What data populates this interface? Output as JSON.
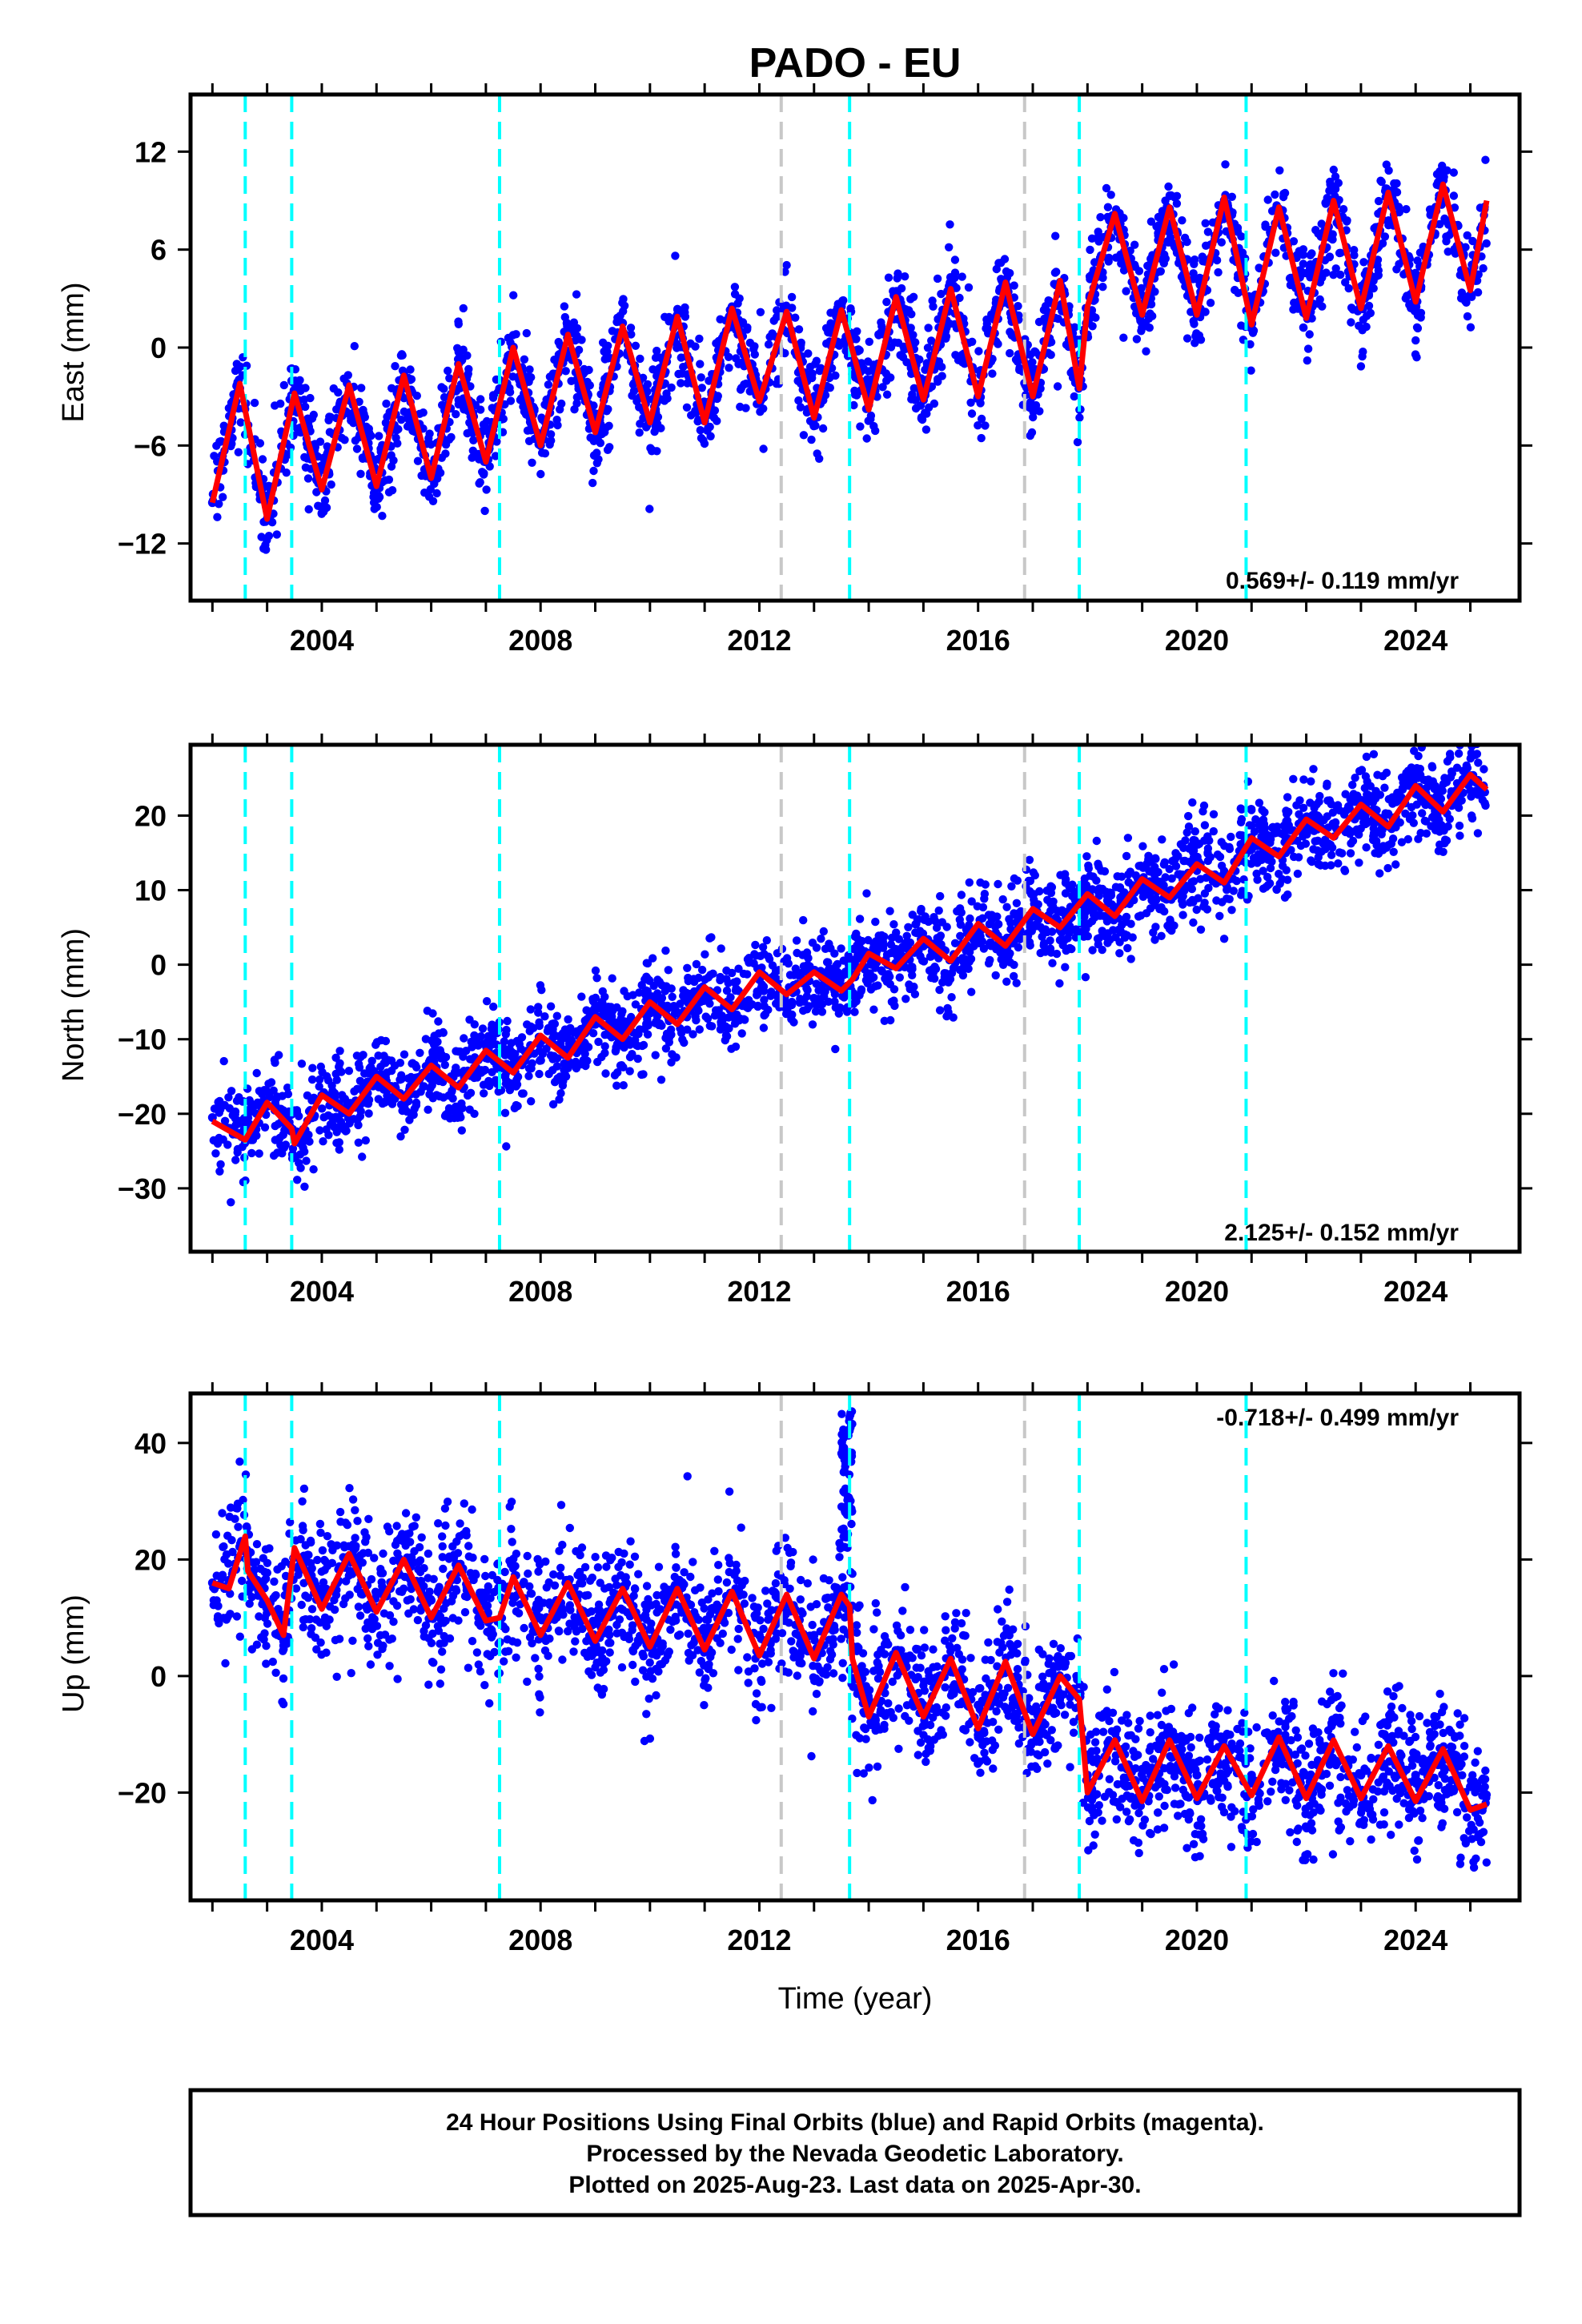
{
  "title": "PADO - EU",
  "colors": {
    "data": "#0000ff",
    "fit": "#ff0000",
    "equipment_change": "#00ffff",
    "earthquake": "#c8c8c8",
    "frame": "#000000"
  },
  "xlabel": "Time (year)",
  "footer": {
    "line1": "24 Hour Positions Using Final Orbits (blue) and Rapid Orbits (magenta).",
    "line2": "Processed by the Nevada Geodetic Laboratory.",
    "line3": "Plotted on 2025-Aug-23. Last data on 2025-Apr-30."
  },
  "chart_data": [
    {
      "type": "scatter",
      "title": "PADO - EU",
      "ylabel": "East (mm)",
      "xlabel": "",
      "xlim": [
        2001.6,
        2025.9
      ],
      "ylim": [
        -15.5,
        15.5
      ],
      "xticks": [
        2004,
        2008,
        2012,
        2016,
        2020,
        2024
      ],
      "yticks": [
        -12,
        -6,
        0,
        6,
        12
      ],
      "yticklabels": [
        "−12",
        "−6",
        "0",
        "6",
        "12"
      ],
      "rate_label": "0.569+/- 0.119 mm/yr",
      "grid": false,
      "vlines_cyan": [
        2002.6,
        2003.45,
        2007.25,
        2013.65,
        2017.85,
        2020.9
      ],
      "vlines_gray": [
        2012.4,
        2016.85
      ],
      "series": [
        {
          "kind": "points",
          "x": [
            2002.0,
            2002.5,
            2003.0,
            2003.5,
            2004.0,
            2004.5,
            2005.0,
            2005.5,
            2006.0,
            2006.5,
            2007.0,
            2007.5,
            2008.0,
            2008.5,
            2009.0,
            2009.5,
            2010.0,
            2010.5,
            2011.0,
            2011.5,
            2012.0,
            2012.5,
            2013.0,
            2013.5,
            2014.0,
            2014.5,
            2015.0,
            2015.5,
            2016.0,
            2016.5,
            2017.0,
            2017.5,
            2018.0,
            2018.5,
            2019.0,
            2019.5,
            2020.0,
            2020.5,
            2021.0,
            2021.5,
            2022.0,
            2022.5,
            2023.0,
            2023.5,
            2024.0,
            2024.5,
            2025.0
          ],
          "y": [
            -9.5,
            -2.5,
            -10.5,
            -3.0,
            -8.5,
            -2.5,
            -8.5,
            -2.0,
            -8.0,
            -1.0,
            -7.0,
            0.0,
            -6.0,
            1.0,
            -5.0,
            1.5,
            -4.5,
            2.0,
            -4.5,
            2.5,
            -3.0,
            2.0,
            -4.0,
            2.5,
            -3.5,
            3.0,
            -3.0,
            3.5,
            -3.0,
            4.0,
            -3.0,
            4.0,
            2.0,
            8.0,
            1.5,
            8.5,
            2.0,
            9.0,
            1.5,
            8.5,
            2.0,
            9.0,
            2.5,
            9.5,
            2.5,
            9.5,
            4.0
          ]
        },
        {
          "kind": "fit",
          "x": [
            2002.0,
            2002.5,
            2003.0,
            2003.5,
            2004.0,
            2004.5,
            2005.0,
            2005.5,
            2006.0,
            2006.5,
            2007.0,
            2007.5,
            2008.0,
            2008.5,
            2009.0,
            2009.5,
            2010.0,
            2010.5,
            2011.0,
            2011.5,
            2012.0,
            2012.5,
            2013.0,
            2013.5,
            2014.0,
            2014.5,
            2015.0,
            2015.5,
            2016.0,
            2016.5,
            2017.0,
            2017.5,
            2017.85,
            2018.0,
            2018.5,
            2019.0,
            2019.5,
            2020.0,
            2020.5,
            2021.0,
            2021.5,
            2022.0,
            2022.5,
            2023.0,
            2023.5,
            2024.0,
            2024.5,
            2025.0,
            2025.3
          ],
          "y": [
            -9.5,
            -2.2,
            -10.5,
            -2.8,
            -8.7,
            -2.3,
            -8.5,
            -1.7,
            -8.0,
            -1.0,
            -7.0,
            0.0,
            -6.0,
            0.8,
            -5.2,
            1.3,
            -4.6,
            1.9,
            -4.6,
            2.4,
            -3.3,
            2.2,
            -4.3,
            2.3,
            -3.8,
            3.1,
            -3.2,
            3.6,
            -3.0,
            4.0,
            -3.0,
            4.1,
            -2.5,
            2.5,
            8.2,
            2.0,
            8.6,
            2.0,
            9.2,
            1.4,
            8.6,
            1.8,
            9.0,
            2.4,
            9.5,
            2.8,
            10.0,
            3.5,
            9.0
          ]
        }
      ]
    },
    {
      "type": "scatter",
      "ylabel": "North (mm)",
      "xlabel": "",
      "xlim": [
        2001.6,
        2025.9
      ],
      "ylim": [
        -38.5,
        29.5
      ],
      "xticks": [
        2004,
        2008,
        2012,
        2016,
        2020,
        2024
      ],
      "yticks": [
        -30,
        -20,
        -10,
        0,
        10,
        20
      ],
      "yticklabels": [
        "−30",
        "−20",
        "−10",
        "0",
        "10",
        "20"
      ],
      "rate_label": "2.125+/- 0.152 mm/yr",
      "grid": false,
      "vlines_cyan": [
        2002.6,
        2003.45,
        2007.25,
        2013.65,
        2017.85,
        2020.9
      ],
      "vlines_gray": [
        2012.4,
        2016.85
      ],
      "series": [
        {
          "kind": "points",
          "x": [
            2002.0,
            2003.0,
            2004.0,
            2005.0,
            2006.0,
            2007.0,
            2008.0,
            2009.0,
            2010.0,
            2011.0,
            2012.0,
            2013.0,
            2014.0,
            2015.0,
            2016.0,
            2017.0,
            2018.0,
            2019.0,
            2020.0,
            2021.0,
            2022.0,
            2023.0,
            2024.0,
            2025.0
          ],
          "y": [
            -20.5,
            -19.0,
            -17.5,
            -16.0,
            -15.0,
            -12.5,
            -10.0,
            -8.0,
            -6.5,
            -4.0,
            -2.0,
            -4.5,
            1.5,
            2.5,
            5.0,
            6.5,
            9.0,
            10.0,
            13.0,
            15.5,
            18.0,
            20.0,
            23.0,
            24.5
          ]
        },
        {
          "kind": "fit",
          "x": [
            2002.0,
            2002.6,
            2003.0,
            2003.45,
            2003.5,
            2004.0,
            2004.5,
            2005.0,
            2005.5,
            2006.0,
            2006.5,
            2007.0,
            2007.5,
            2008.0,
            2008.5,
            2009.0,
            2009.5,
            2010.0,
            2010.5,
            2011.0,
            2011.5,
            2012.0,
            2012.5,
            2013.0,
            2013.5,
            2013.7,
            2014.0,
            2014.5,
            2015.0,
            2015.5,
            2016.0,
            2016.5,
            2017.0,
            2017.5,
            2018.0,
            2018.5,
            2019.0,
            2019.5,
            2020.0,
            2020.5,
            2021.0,
            2021.5,
            2022.0,
            2022.5,
            2023.0,
            2023.5,
            2024.0,
            2024.5,
            2025.0,
            2025.3
          ],
          "y": [
            -21.0,
            -23.5,
            -18.5,
            -22.0,
            -24.0,
            -17.5,
            -20.0,
            -15.0,
            -18.0,
            -13.5,
            -16.5,
            -11.5,
            -14.5,
            -9.5,
            -12.5,
            -7.0,
            -10.0,
            -5.0,
            -8.0,
            -3.0,
            -6.0,
            -1.0,
            -4.0,
            -1.0,
            -3.5,
            -2.0,
            1.5,
            -0.5,
            3.5,
            0.5,
            5.5,
            2.5,
            7.5,
            5.0,
            9.5,
            6.5,
            11.5,
            9.0,
            13.5,
            11.0,
            17.0,
            14.5,
            19.5,
            17.0,
            21.5,
            18.5,
            24.0,
            20.5,
            25.5,
            23.5
          ]
        }
      ]
    },
    {
      "type": "scatter",
      "ylabel": "Up (mm)",
      "xlabel": "Time (year)",
      "xlim": [
        2001.6,
        2025.9
      ],
      "ylim": [
        -38.5,
        48.5
      ],
      "xticks": [
        2004,
        2008,
        2012,
        2016,
        2020,
        2024
      ],
      "yticks": [
        -20,
        0,
        20,
        40
      ],
      "yticklabels": [
        "−20",
        "0",
        "20",
        "40"
      ],
      "rate_label": "-0.718+/- 0.499 mm/yr",
      "grid": false,
      "vlines_cyan": [
        2002.6,
        2003.45,
        2007.25,
        2013.65,
        2017.85,
        2020.9
      ],
      "vlines_gray": [
        2012.4,
        2016.85
      ],
      "series": [
        {
          "kind": "points",
          "x": [
            2002.0,
            2003.0,
            2004.0,
            2005.0,
            2006.0,
            2007.0,
            2008.0,
            2009.0,
            2010.0,
            2011.0,
            2012.0,
            2013.0,
            2013.6,
            2014.0,
            2015.0,
            2016.0,
            2017.0,
            2018.0,
            2019.0,
            2020.0,
            2021.0,
            2022.0,
            2023.0,
            2024.0,
            2025.0
          ],
          "y": [
            16.0,
            12.0,
            15.0,
            14.0,
            13.0,
            12.0,
            10.0,
            9.0,
            8.0,
            8.0,
            7.0,
            7.0,
            38.0,
            -4.0,
            -5.0,
            -5.0,
            -6.0,
            -17.0,
            -16.0,
            -17.0,
            -17.0,
            -17.0,
            -17.0,
            -17.0,
            -19.0
          ]
        },
        {
          "kind": "fit",
          "x": [
            2002.0,
            2002.3,
            2002.6,
            2002.65,
            2003.0,
            2003.3,
            2003.5,
            2004.0,
            2004.5,
            2005.0,
            2005.5,
            2006.0,
            2006.5,
            2007.0,
            2007.25,
            2007.5,
            2008.0,
            2008.5,
            2009.0,
            2009.5,
            2010.0,
            2010.5,
            2011.0,
            2011.5,
            2012.0,
            2012.5,
            2013.0,
            2013.5,
            2013.65,
            2013.7,
            2014.0,
            2014.5,
            2015.0,
            2015.5,
            2016.0,
            2016.5,
            2017.0,
            2017.5,
            2017.85,
            2018.0,
            2018.5,
            2019.0,
            2019.5,
            2020.0,
            2020.5,
            2021.0,
            2021.5,
            2022.0,
            2022.5,
            2023.0,
            2023.5,
            2024.0,
            2024.5,
            2025.0,
            2025.3
          ],
          "y": [
            16.0,
            15.0,
            24.0,
            18.0,
            13.0,
            7.0,
            22.0,
            11.5,
            21.0,
            11.0,
            20.0,
            10.0,
            19.0,
            9.5,
            10.0,
            17.0,
            7.0,
            16.0,
            6.0,
            15.0,
            5.0,
            15.0,
            4.5,
            14.5,
            3.5,
            14.0,
            3.0,
            14.0,
            12.0,
            3.0,
            -7.0,
            4.0,
            -7.0,
            3.0,
            -9.0,
            2.5,
            -10.0,
            0.0,
            -4.0,
            -20.0,
            -11.0,
            -21.5,
            -11.0,
            -21.0,
            -12.0,
            -20.5,
            -10.5,
            -21.0,
            -11.0,
            -21.0,
            -12.0,
            -21.5,
            -12.5,
            -23.0,
            -22.0
          ]
        }
      ]
    }
  ]
}
